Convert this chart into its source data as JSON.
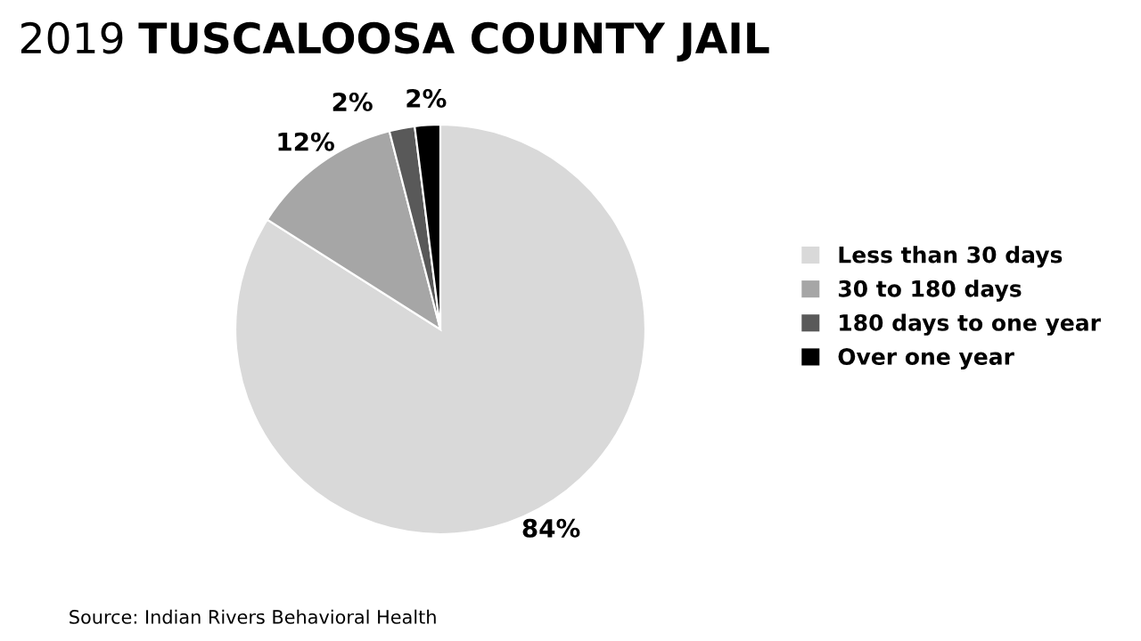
{
  "chart_data": {
    "type": "pie",
    "title": "2019 TUSCALOOSA COUNTY JAIL",
    "categories": [
      "Less than 30 days",
      "30 to 180 days",
      "180 days to one year",
      "Over one year"
    ],
    "values": [
      84,
      12,
      2,
      2
    ],
    "colors": [
      "#d9d9d9",
      "#a6a6a6",
      "#595959",
      "#000000"
    ],
    "value_labels": [
      "84%",
      "12%",
      "2%",
      "2%"
    ],
    "legend": "right",
    "annotations": [
      "Source: Indian Rivers Behavioral Health"
    ]
  }
}
